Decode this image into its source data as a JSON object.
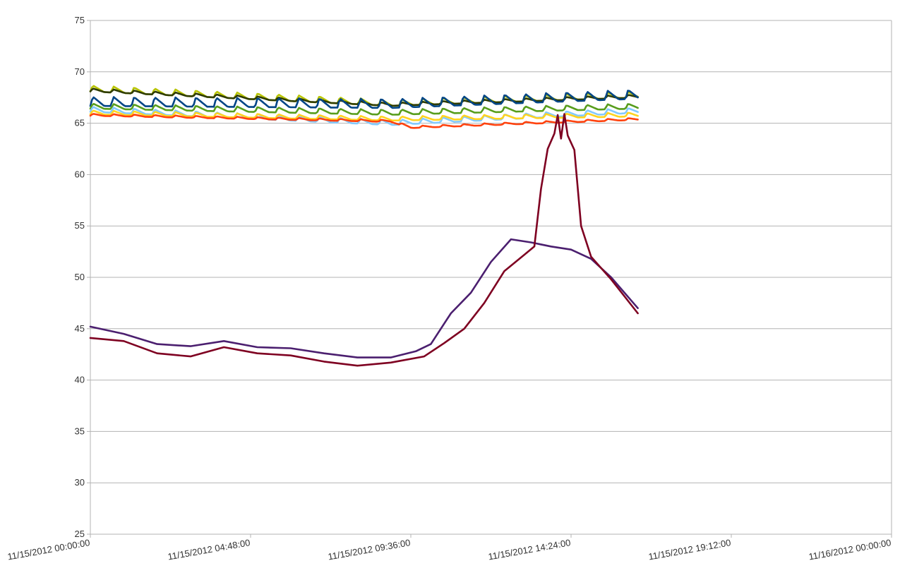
{
  "chart_data": {
    "type": "line",
    "title": "",
    "xlabel": "",
    "ylabel": "",
    "grid": true,
    "legend": "none",
    "ylim": [
      25,
      75
    ],
    "xlim": [
      "11/15/2012 00:00:00",
      "11/16/2012 00:00:00"
    ],
    "y_ticks": [
      "25",
      "30",
      "35",
      "40",
      "45",
      "50",
      "55",
      "60",
      "65",
      "70",
      "75"
    ],
    "x_ticks": [
      "11/15/2012 00:00:00",
      "11/15/2012 04:48:00",
      "11/15/2012 09:36:00",
      "11/15/2012 14:24:00",
      "11/15/2012 19:12:00",
      "11/16/2012 00:00:00"
    ],
    "series": [
      {
        "color": "#b8c400",
        "pattern": "sawtooth",
        "x": [
          "11/15/2012 00:00:00",
          "11/15/2012 09:00:00",
          "11/15/2012 16:24:00"
        ],
        "y": [
          68.3,
          66.9,
          67.7
        ],
        "amplitude": 0.6
      },
      {
        "color": "#2e3b00",
        "pattern": "sawtooth",
        "x": [
          "11/15/2012 00:00:00",
          "11/15/2012 09:00:00",
          "11/15/2012 16:24:00"
        ],
        "y": [
          68.2,
          66.8,
          67.6
        ],
        "amplitude": 0.3
      },
      {
        "color": "#004586",
        "pattern": "sawtooth",
        "x": [
          "11/15/2012 00:00:00",
          "11/15/2012 09:00:00",
          "11/15/2012 16:24:00"
        ],
        "y": [
          67.0,
          66.8,
          67.7
        ],
        "amplitude": 0.9
      },
      {
        "color": "#579d1c",
        "pattern": "sawtooth",
        "x": [
          "11/15/2012 00:00:00",
          "11/15/2012 09:00:00",
          "11/15/2012 16:24:00"
        ],
        "y": [
          66.6,
          66.0,
          66.6
        ],
        "amplitude": 0.5
      },
      {
        "color": "#83caff",
        "pattern": "sawtooth",
        "x": [
          "11/15/2012 00:00:00",
          "11/15/2012 09:00:00",
          "11/15/2012 16:24:00"
        ],
        "y": [
          66.3,
          65.0,
          66.2
        ],
        "amplitude": 0.5
      },
      {
        "color": "#ffd320",
        "pattern": "sawtooth",
        "x": [
          "11/15/2012 00:00:00",
          "11/15/2012 09:00:00",
          "11/15/2012 16:24:00"
        ],
        "y": [
          66.0,
          65.4,
          65.8
        ],
        "amplitude": 0.4
      },
      {
        "color": "#ff420e",
        "pattern": "sawtooth",
        "x": [
          "11/15/2012 00:00:00",
          "11/15/2012 09:00:00",
          "11/15/2012 09:36:00",
          "11/15/2012 16:24:00"
        ],
        "y": [
          65.8,
          65.2,
          64.6,
          65.4
        ],
        "amplitude": 0.2
      },
      {
        "color": "#4b1f6f",
        "pattern": "smooth",
        "x": [
          "11/15/2012 00:00:00",
          "11/15/2012 01:00:00",
          "11/15/2012 02:00:00",
          "11/15/2012 03:00:00",
          "11/15/2012 04:00:00",
          "11/15/2012 05:00:00",
          "11/15/2012 06:00:00",
          "11/15/2012 07:00:00",
          "11/15/2012 08:00:00",
          "11/15/2012 09:00:00",
          "11/15/2012 09:45:00",
          "11/15/2012 10:12:00",
          "11/15/2012 10:48:00",
          "11/15/2012 11:24:00",
          "11/15/2012 12:00:00",
          "11/15/2012 12:36:00",
          "11/15/2012 13:12:00",
          "11/15/2012 13:48:00",
          "11/15/2012 14:24:00",
          "11/15/2012 15:00:00",
          "11/15/2012 15:36:00",
          "11/15/2012 16:24:00"
        ],
        "y": [
          45.2,
          44.5,
          43.5,
          43.3,
          43.8,
          43.2,
          43.1,
          42.6,
          42.2,
          42.2,
          42.8,
          43.5,
          46.5,
          48.5,
          51.5,
          53.7,
          53.4,
          53.0,
          52.7,
          51.8,
          50.0,
          47.0
        ]
      },
      {
        "color": "#7e0021",
        "pattern": "smooth",
        "x": [
          "11/15/2012 00:00:00",
          "11/15/2012 01:00:00",
          "11/15/2012 02:00:00",
          "11/15/2012 03:00:00",
          "11/15/2012 04:00:00",
          "11/15/2012 05:00:00",
          "11/15/2012 06:00:00",
          "11/15/2012 07:00:00",
          "11/15/2012 08:00:00",
          "11/15/2012 09:00:00",
          "11/15/2012 10:00:00",
          "11/15/2012 10:36:00",
          "11/15/2012 11:12:00",
          "11/15/2012 11:48:00",
          "11/15/2012 12:24:00",
          "11/15/2012 13:00:00",
          "11/15/2012 13:18:00",
          "11/15/2012 13:30:00",
          "11/15/2012 13:42:00",
          "11/15/2012 13:54:00",
          "11/15/2012 14:00:00",
          "11/15/2012 14:06:00",
          "11/15/2012 14:12:00",
          "11/15/2012 14:18:00",
          "11/15/2012 14:30:00",
          "11/15/2012 14:42:00",
          "11/15/2012 15:00:00",
          "11/15/2012 15:36:00",
          "11/15/2012 16:24:00"
        ],
        "y": [
          44.1,
          43.8,
          42.6,
          42.3,
          43.2,
          42.6,
          42.4,
          41.8,
          41.4,
          41.7,
          42.3,
          43.6,
          45.0,
          47.5,
          50.6,
          52.2,
          53.0,
          58.6,
          62.5,
          64.0,
          65.8,
          63.5,
          65.9,
          63.8,
          62.4,
          55.0,
          52.0,
          49.8,
          46.5
        ]
      }
    ]
  }
}
